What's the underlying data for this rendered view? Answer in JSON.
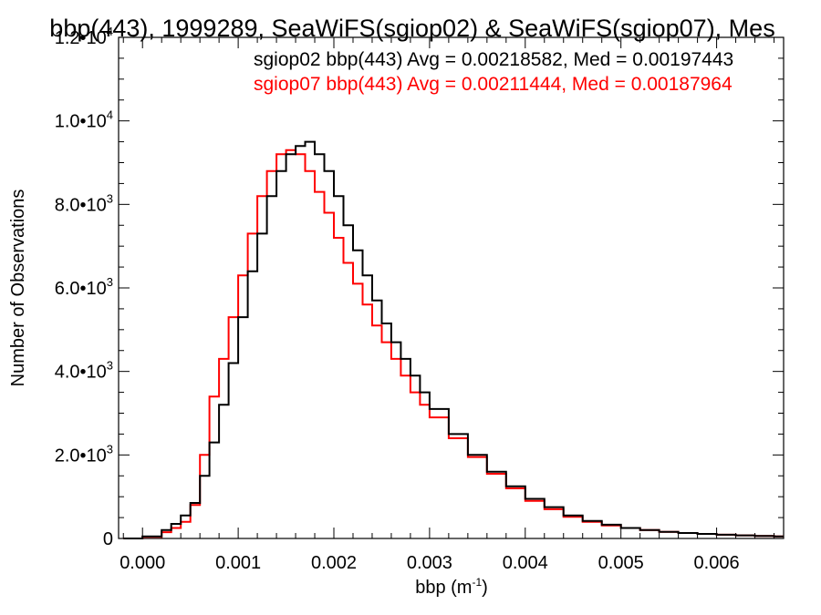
{
  "chart_data": {
    "type": "line",
    "title": "bbp(443), 1999289, SeaWiFS(sgiop02) & SeaWiFS(sgiop07), Mes",
    "xlabel": "bbp (m",
    "xlabel_sup": "-1",
    "xlabel_end": ")",
    "ylabel": "Number of Observations",
    "xlim": [
      -0.00025,
      0.0067
    ],
    "ylim": [
      0,
      12000
    ],
    "x_ticks": [
      {
        "value": 0.0,
        "label": "0.000"
      },
      {
        "value": 0.001,
        "label": "0.001"
      },
      {
        "value": 0.002,
        "label": "0.002"
      },
      {
        "value": 0.003,
        "label": "0.003"
      },
      {
        "value": 0.004,
        "label": "0.004"
      },
      {
        "value": 0.005,
        "label": "0.005"
      },
      {
        "value": 0.006,
        "label": "0.006"
      }
    ],
    "y_ticks": [
      {
        "value": 0,
        "label": "0",
        "exp": ""
      },
      {
        "value": 2000,
        "label": "2.0•10",
        "exp": "3"
      },
      {
        "value": 4000,
        "label": "4.0•10",
        "exp": "3"
      },
      {
        "value": 6000,
        "label": "6.0•10",
        "exp": "3"
      },
      {
        "value": 8000,
        "label": "8.0•10",
        "exp": "3"
      },
      {
        "value": 10000,
        "label": "1.0•10",
        "exp": "4"
      },
      {
        "value": 12000,
        "label": "1.2•10",
        "exp": "4"
      }
    ],
    "grid": false,
    "legend_position": "top-right",
    "series": [
      {
        "name": "sgiop02",
        "legend_text": "sgiop02 bbp(443) Avg = 0.00218582, Med = 0.00197443",
        "color": "#000000",
        "x": [
          -0.0002,
          0.0,
          0.0002,
          0.0003,
          0.0004,
          0.0005,
          0.0006,
          0.0007,
          0.0008,
          0.0009,
          0.001,
          0.0011,
          0.0012,
          0.0013,
          0.0014,
          0.0015,
          0.0016,
          0.0017,
          0.0018,
          0.0019,
          0.002,
          0.0021,
          0.0022,
          0.0023,
          0.0024,
          0.0025,
          0.0026,
          0.0027,
          0.0028,
          0.0029,
          0.003,
          0.0032,
          0.0034,
          0.0036,
          0.0038,
          0.004,
          0.0042,
          0.0044,
          0.0046,
          0.0048,
          0.005,
          0.0052,
          0.0054,
          0.0056,
          0.0058,
          0.006,
          0.0062,
          0.0064,
          0.0066
        ],
        "y": [
          0,
          50,
          200,
          350,
          550,
          850,
          1500,
          2300,
          3200,
          4200,
          5300,
          6400,
          7300,
          8200,
          8800,
          9200,
          9400,
          9500,
          9200,
          8800,
          8200,
          7500,
          6900,
          6300,
          5700,
          5150,
          4700,
          4300,
          3900,
          3500,
          3100,
          2500,
          2000,
          1600,
          1250,
          950,
          750,
          550,
          420,
          330,
          250,
          200,
          160,
          130,
          110,
          90,
          75,
          60,
          50
        ]
      },
      {
        "name": "sgiop07",
        "legend_text": "sgiop07 bbp(443) Avg = 0.00211444, Med = 0.00187964",
        "color": "#ff0000",
        "x": [
          -0.0002,
          0.0,
          0.0002,
          0.0003,
          0.0004,
          0.0005,
          0.0006,
          0.0007,
          0.0008,
          0.0009,
          0.001,
          0.0011,
          0.0012,
          0.0013,
          0.0014,
          0.0015,
          0.0016,
          0.0017,
          0.0018,
          0.0019,
          0.002,
          0.0021,
          0.0022,
          0.0023,
          0.0024,
          0.0025,
          0.0026,
          0.0027,
          0.0028,
          0.0029,
          0.003,
          0.0032,
          0.0034,
          0.0036,
          0.0038,
          0.004,
          0.0042,
          0.0044,
          0.0046,
          0.0048,
          0.005,
          0.0052,
          0.0054,
          0.0056,
          0.0058,
          0.006,
          0.0062,
          0.0064,
          0.0066
        ],
        "y": [
          0,
          40,
          150,
          250,
          400,
          800,
          2000,
          3400,
          4300,
          5300,
          6300,
          7300,
          8200,
          8800,
          9200,
          9300,
          9200,
          8800,
          8300,
          7800,
          7200,
          6600,
          6100,
          5600,
          5100,
          4700,
          4300,
          3900,
          3500,
          3200,
          2900,
          2400,
          1950,
          1550,
          1200,
          900,
          700,
          520,
          400,
          310,
          250,
          200,
          160,
          130,
          110,
          90,
          75,
          60,
          50
        ]
      }
    ]
  }
}
